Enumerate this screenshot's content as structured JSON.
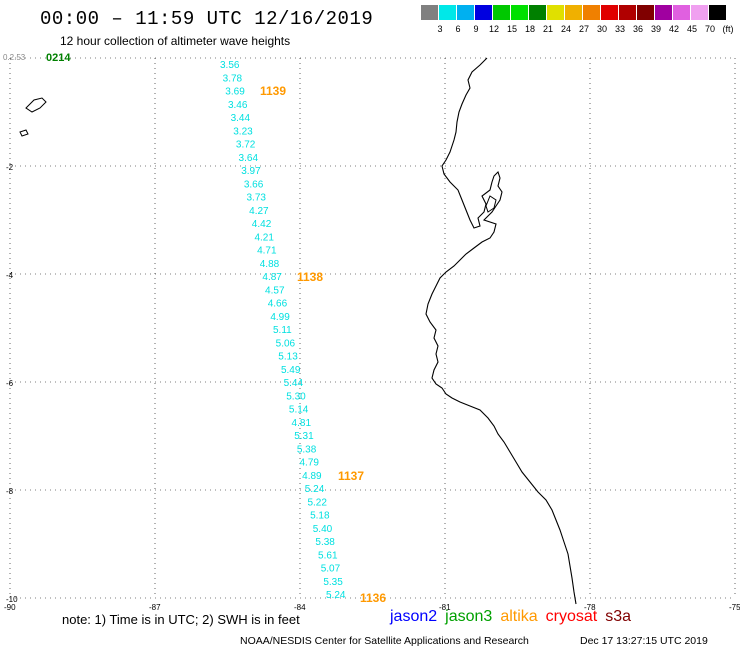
{
  "header": {
    "title": "00:00 – 11:59 UTC 12/16/2019",
    "subtitle": "12 hour collection of altimeter wave heights"
  },
  "colorbar": {
    "colors": [
      "#808080",
      "#00e8e8",
      "#00b0f0",
      "#0000e0",
      "#00c800",
      "#00e000",
      "#008000",
      "#e0e000",
      "#f0b000",
      "#f08000",
      "#e00000",
      "#b00000",
      "#800000",
      "#a000a0",
      "#e060e0",
      "#f0a0f0",
      "#000000"
    ],
    "labels": [
      "3",
      "6",
      "9",
      "12",
      "15",
      "18",
      "21",
      "24",
      "27",
      "30",
      "33",
      "36",
      "39",
      "42",
      "45",
      "70",
      "(ft)"
    ]
  },
  "axes": {
    "y_labels": [
      "-2",
      "-4",
      "-6",
      "-8",
      "-10"
    ],
    "x_labels": [
      "-90",
      "-87",
      "-84",
      "-81",
      "-78",
      "-75"
    ],
    "corner_label": "0.2.53"
  },
  "track": {
    "color": "#00e0e0",
    "values": [
      "3.56",
      "3.78",
      "3.69",
      "3.46",
      "3.44",
      "3.23",
      "3.72",
      "3.64",
      "3.97",
      "3.66",
      "3.73",
      "4.27",
      "4.42",
      "4.21",
      "4.71",
      "4.88",
      "4.87",
      "4.57",
      "4.66",
      "4.99",
      "5.11",
      "5.06",
      "5.13",
      "5.49",
      "5.44",
      "5.30",
      "5.14",
      "4.81",
      "5.31",
      "5.38",
      "4.79",
      "4.89",
      "5.24",
      "5.22",
      "5.18",
      "5.40",
      "5.38",
      "5.61",
      "5.07",
      "5.35",
      "5.24"
    ]
  },
  "time_labels": {
    "color": "#ff9900",
    "items": [
      "1139",
      "1138",
      "1137",
      "1136"
    ],
    "start_label": "0214",
    "start_color": "#008000"
  },
  "note": "note:  1) Time is in UTC;  2) SWH is in feet",
  "legend": [
    {
      "label": "jason2",
      "color": "#0000ff"
    },
    {
      "label": "jason3",
      "color": "#00a000"
    },
    {
      "label": "altika",
      "color": "#ff9900"
    },
    {
      "label": "cryosat",
      "color": "#ff0000"
    },
    {
      "label": "s3a",
      "color": "#800000"
    }
  ],
  "credit": "NOAA/NESDIS Center for Satellite Applications and Research",
  "timestamp": "Dec 17 13:27:15 UTC 2019"
}
